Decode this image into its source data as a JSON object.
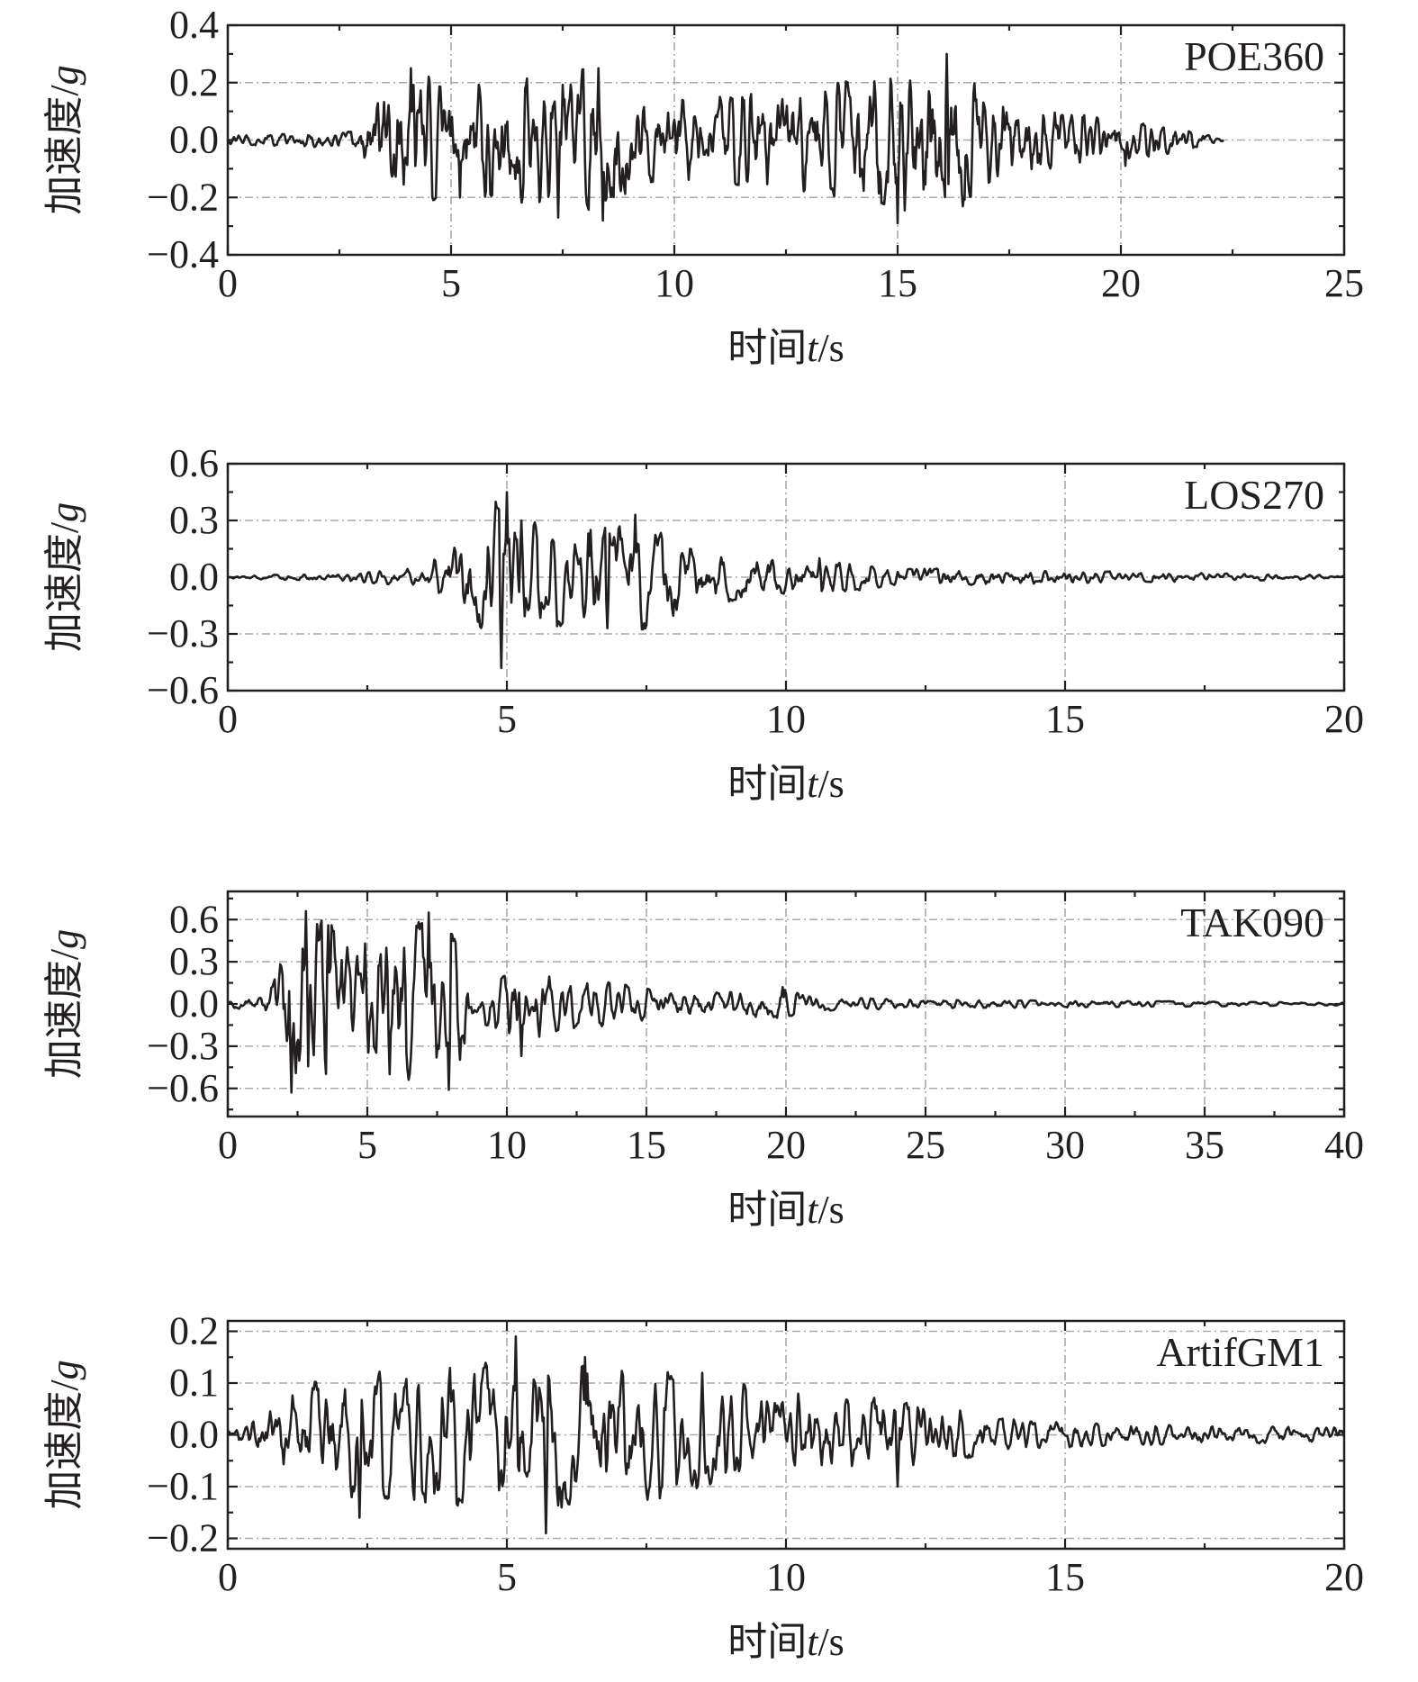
{
  "figure": {
    "colors": {
      "ink": "#231f20",
      "grid": "#a7a9ac"
    }
  },
  "chart_data": [
    {
      "type": "line",
      "record": "POE360",
      "xlabel": {
        "prefix": "时间",
        "var": "t",
        "unit": "/s"
      },
      "ylabel": {
        "prefix": "加速度",
        "unit_sep": "/",
        "unit": "g"
      },
      "xlim": [
        0,
        25
      ],
      "ylim": [
        -0.4,
        0.4
      ],
      "xticks": [
        0,
        5,
        10,
        15,
        20,
        25
      ],
      "xtick_labels": [
        "0",
        "5",
        "10",
        "15",
        "20",
        "25"
      ],
      "yticks": [
        -0.4,
        -0.2,
        0.0,
        0.2,
        0.4
      ],
      "ytick_labels": [
        "−0.4",
        "−0.2",
        "0.0",
        "0.2",
        "0.4"
      ],
      "grid": true,
      "record_end_s": 22.3,
      "envelope": [
        [
          0,
          0.015
        ],
        [
          2.9,
          0.03
        ],
        [
          3.3,
          0.17
        ],
        [
          4.2,
          0.24
        ],
        [
          5.0,
          0.2
        ],
        [
          6.0,
          0.2
        ],
        [
          7.4,
          0.25
        ],
        [
          8.3,
          0.25
        ],
        [
          9.5,
          0.15
        ],
        [
          11.0,
          0.15
        ],
        [
          12.8,
          0.18
        ],
        [
          14.5,
          0.22
        ],
        [
          15.0,
          0.27
        ],
        [
          16.1,
          0.28
        ],
        [
          16.5,
          0.25
        ],
        [
          17.0,
          0.15
        ],
        [
          18.5,
          0.1
        ],
        [
          20.0,
          0.07
        ],
        [
          21.0,
          0.05
        ],
        [
          22.3,
          0.005
        ]
      ],
      "peaks": [
        [
          4.1,
          0.25
        ],
        [
          5.2,
          -0.2
        ],
        [
          7.4,
          -0.27
        ],
        [
          8.3,
          0.25
        ],
        [
          8.4,
          -0.28
        ],
        [
          15.0,
          -0.29
        ],
        [
          16.1,
          0.3
        ],
        [
          20.1,
          -0.09
        ]
      ],
      "dt": 0.02
    },
    {
      "type": "line",
      "record": "LOS270",
      "xlabel": {
        "prefix": "时间",
        "var": "t",
        "unit": "/s"
      },
      "ylabel": {
        "prefix": "加速度",
        "unit_sep": "/",
        "unit": "g"
      },
      "xlim": [
        0,
        20
      ],
      "ylim": [
        -0.6,
        0.6
      ],
      "xticks": [
        0,
        5,
        10,
        15,
        20
      ],
      "xtick_labels": [
        "0",
        "5",
        "10",
        "15",
        "20"
      ],
      "yticks": [
        -0.6,
        -0.3,
        0.0,
        0.3,
        0.6
      ],
      "ytick_labels": [
        "−0.6",
        "−0.3",
        "0.0",
        "0.3",
        "0.6"
      ],
      "grid": true,
      "record_end_s": 20,
      "envelope": [
        [
          0,
          0.008
        ],
        [
          2.0,
          0.02
        ],
        [
          3.5,
          0.05
        ],
        [
          4.0,
          0.16
        ],
        [
          4.8,
          0.4
        ],
        [
          5.0,
          0.45
        ],
        [
          5.3,
          0.3
        ],
        [
          6.5,
          0.25
        ],
        [
          7.3,
          0.3
        ],
        [
          8.5,
          0.15
        ],
        [
          10.0,
          0.09
        ],
        [
          11.0,
          0.08
        ],
        [
          12.0,
          0.05
        ],
        [
          15.0,
          0.035
        ],
        [
          18.0,
          0.02
        ],
        [
          20.0,
          0.01
        ]
      ],
      "peaks": [
        [
          4.9,
          -0.48
        ],
        [
          5.0,
          0.45
        ],
        [
          5.25,
          0.3
        ],
        [
          6.5,
          0.25
        ],
        [
          6.8,
          -0.27
        ],
        [
          7.3,
          0.33
        ],
        [
          10.6,
          0.1
        ]
      ],
      "dt": 0.02
    },
    {
      "type": "line",
      "record": "TAK090",
      "xlabel": {
        "prefix": "时间",
        "var": "t",
        "unit": "/s"
      },
      "ylabel": {
        "prefix": "加速度",
        "unit_sep": "/",
        "unit": "g"
      },
      "xlim": [
        0,
        40
      ],
      "ylim": [
        -0.8,
        0.8
      ],
      "xticks": [
        0,
        5,
        10,
        15,
        20,
        25,
        30,
        35,
        40
      ],
      "xtick_labels": [
        "0",
        "5",
        "10",
        "15",
        "20",
        "25",
        "30",
        "35",
        "40"
      ],
      "yticks": [
        -0.6,
        -0.3,
        0.0,
        0.3,
        0.6
      ],
      "ytick_labels": [
        "−0.6",
        "−0.3",
        "0.0",
        "0.3",
        "0.6"
      ],
      "grid": true,
      "record_end_s": 40,
      "envelope": [
        [
          0,
          0.02
        ],
        [
          1.5,
          0.08
        ],
        [
          2.2,
          0.5
        ],
        [
          2.7,
          0.65
        ],
        [
          4.5,
          0.5
        ],
        [
          6.0,
          0.55
        ],
        [
          7.2,
          0.6
        ],
        [
          8.0,
          0.55
        ],
        [
          9.0,
          0.12
        ],
        [
          10.5,
          0.3
        ],
        [
          12.0,
          0.18
        ],
        [
          14.0,
          0.15
        ],
        [
          16.0,
          0.08
        ],
        [
          20.0,
          0.1
        ],
        [
          21.0,
          0.05
        ],
        [
          25.0,
          0.03
        ],
        [
          30.0,
          0.025
        ],
        [
          40.0,
          0.01
        ]
      ],
      "peaks": [
        [
          2.3,
          -0.63
        ],
        [
          2.8,
          0.66
        ],
        [
          3.6,
          0.56
        ],
        [
          4.9,
          0.43
        ],
        [
          5.8,
          -0.5
        ],
        [
          6.3,
          0.4
        ],
        [
          7.2,
          0.65
        ],
        [
          7.9,
          -0.61
        ],
        [
          10.5,
          -0.37
        ],
        [
          19.9,
          0.12
        ]
      ],
      "dt": 0.04
    },
    {
      "type": "line",
      "record": "ArtifGM1",
      "xlabel": {
        "prefix": "时间",
        "var": "t",
        "unit": "/s"
      },
      "ylabel": {
        "prefix": "加速度",
        "unit_sep": "/",
        "unit": "g"
      },
      "xlim": [
        0,
        20
      ],
      "ylim": [
        -0.22,
        0.22
      ],
      "xticks": [
        0,
        5,
        10,
        15,
        20
      ],
      "xtick_labels": [
        "0",
        "5",
        "10",
        "15",
        "20"
      ],
      "yticks": [
        -0.2,
        -0.1,
        0.0,
        0.1,
        0.2
      ],
      "ytick_labels": [
        "−0.2",
        "−0.1",
        "0.0",
        "0.1",
        "0.2"
      ],
      "grid": true,
      "record_end_s": 20,
      "envelope": [
        [
          0,
          0.01
        ],
        [
          0.3,
          0.03
        ],
        [
          1.0,
          0.08
        ],
        [
          2.0,
          0.12
        ],
        [
          3.0,
          0.13
        ],
        [
          5.0,
          0.15
        ],
        [
          6.5,
          0.14
        ],
        [
          8.0,
          0.12
        ],
        [
          9.0,
          0.1
        ],
        [
          11.0,
          0.08
        ],
        [
          12.5,
          0.06
        ],
        [
          14.0,
          0.03
        ],
        [
          16.0,
          0.02
        ],
        [
          20.0,
          0.015
        ]
      ],
      "peaks": [
        [
          2.35,
          -0.16
        ],
        [
          5.15,
          0.19
        ],
        [
          5.7,
          -0.19
        ],
        [
          6.4,
          0.15
        ],
        [
          8.5,
          0.12
        ],
        [
          12.0,
          -0.1
        ]
      ],
      "dt": 0.02
    }
  ]
}
